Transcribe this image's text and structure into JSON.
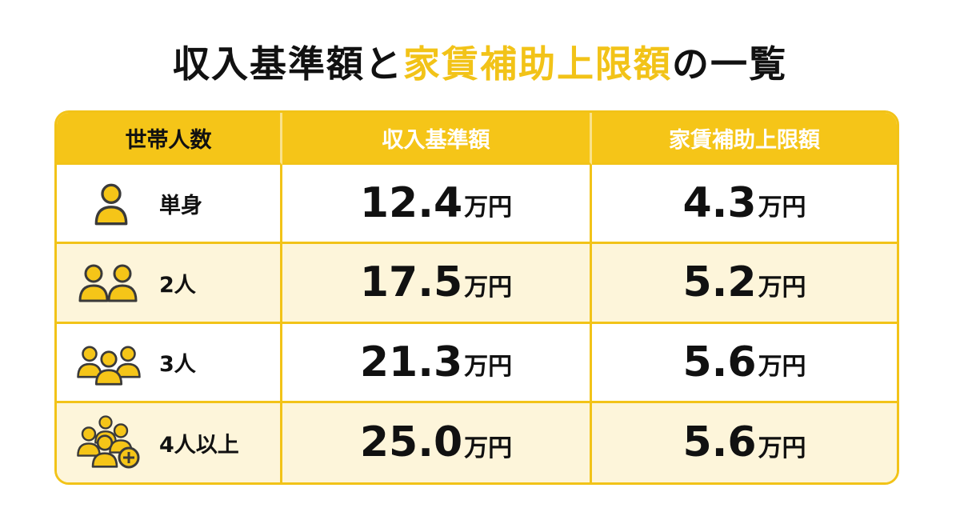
{
  "title": {
    "parts": [
      "収入基準額と",
      "家賃補助上限額",
      "の一覧"
    ]
  },
  "table": {
    "header": [
      "世帯人数",
      "収入基準額",
      "家賃補助上限額"
    ],
    "rows": [
      {
        "label": "単身",
        "income": {
          "value": "12.4",
          "unit": "万円"
        },
        "rent": {
          "value": "4.3",
          "unit": "万円"
        }
      },
      {
        "label": "2人",
        "income": {
          "value": "17.5",
          "unit": "万円"
        },
        "rent": {
          "value": "5.2",
          "unit": "万円"
        }
      },
      {
        "label": "3人",
        "income": {
          "value": "21.3",
          "unit": "万円"
        },
        "rent": {
          "value": "5.6",
          "unit": "万円"
        }
      },
      {
        "label": "4人以上",
        "income": {
          "value": "25.0",
          "unit": "万円"
        },
        "rent": {
          "value": "5.6",
          "unit": "万円"
        }
      }
    ]
  }
}
